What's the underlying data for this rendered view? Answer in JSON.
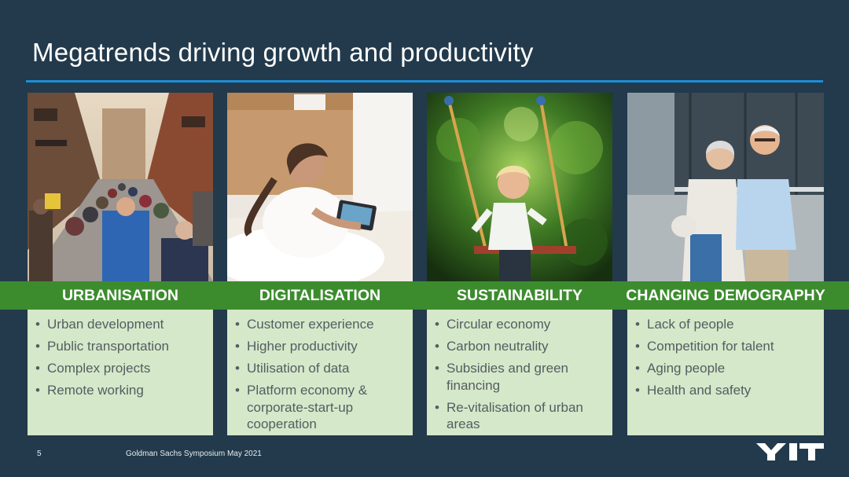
{
  "slide": {
    "title": "Megatrends driving growth and productivity",
    "page_number": "5",
    "footer": "Goldman Sachs Symposium  May 2021",
    "logo_text": "YIT"
  },
  "columns": [
    {
      "heading": "URBANISATION",
      "photo": "busy-city-street-photo",
      "bullets": [
        "Urban development",
        "Public transportation",
        "Complex projects",
        "Remote working"
      ]
    },
    {
      "heading": "DIGITALISATION",
      "photo": "woman-with-tablet-photo",
      "bullets": [
        "Customer experience",
        "Higher productivity",
        "Utilisation of data",
        "Platform economy & corporate-start-up cooperation"
      ]
    },
    {
      "heading": "SUSTAINABILITY",
      "photo": "child-on-swing-photo",
      "bullets": [
        "Circular economy",
        "Carbon neutrality",
        "Subsidies and green financing",
        "Re-vitalisation of urban areas"
      ]
    },
    {
      "heading": "CHANGING DEMOGRAPHY",
      "photo": "elderly-couple-photo",
      "bullets": [
        "Lack of people",
        "Competition for talent",
        "Aging people",
        "Health and safety"
      ]
    }
  ],
  "colors": {
    "background": "#223a4c",
    "accent_line": "#1d8ed6",
    "heading_green": "#3c8c2e",
    "panel_green": "#d5e8c9",
    "bullet_text": "#555d62"
  }
}
